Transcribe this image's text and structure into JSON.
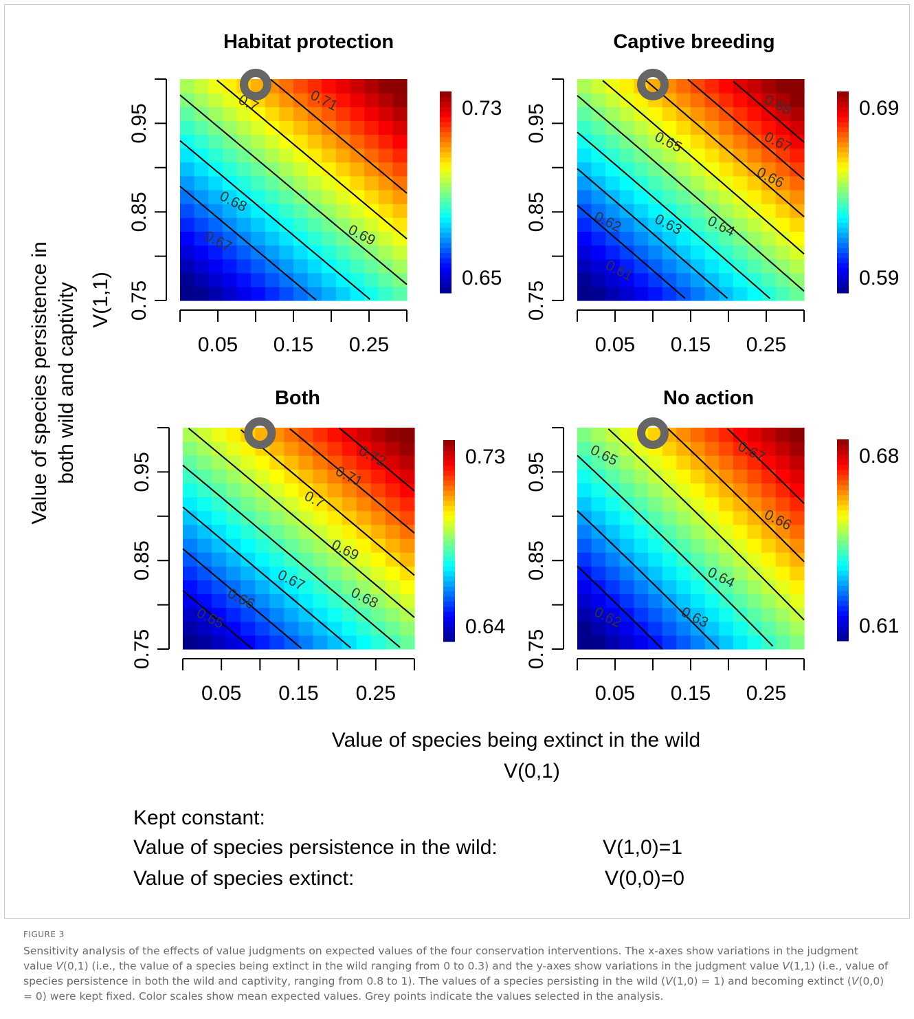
{
  "figure": {
    "y_axis_title_line1": "Value of species persistence in",
    "y_axis_title_line2": "both wild and captivity",
    "y_axis_title_line3": "V(1,1)",
    "x_axis_title_line1": "Value of species being extinct in the wild",
    "x_axis_title_line2": "V(0,1)",
    "kept_constant_heading": "Kept constant:",
    "constants": [
      {
        "label": "Value of species persistence in the wild:",
        "value": "V(1,0)=1"
      },
      {
        "label": "Value of species extinct:",
        "value": "V(0,0)=0"
      }
    ]
  },
  "caption": {
    "label": "FIGURE 3",
    "parts": [
      "Sensitivity analysis of the effects of value judgments on expected values of the four conservation interventions. The x-axes show variations in the judgment value ",
      "V",
      "(0,1) (i.e., the value of a species being extinct in the wild ranging from 0 to 0.3) and the y-axes show variations in the judgment value ",
      "V",
      "(1,1) (i.e., value of species persistence in both the wild and captivity, ranging from 0.8 to 1). The values of a species persisting in the wild (",
      "V",
      "(1,0) = 1) and becoming extinct (",
      "V",
      "(0,0) = 0) were kept fixed. Color scales show mean expected values. Grey points indicate the values selected in the analysis."
    ]
  },
  "colors": {
    "ramp": [
      "#00008b",
      "#0000ff",
      "#0080ff",
      "#00ffff",
      "#80ff80",
      "#ffff00",
      "#ff8000",
      "#ff0000",
      "#8b0000"
    ],
    "selected_point": "#666666",
    "contour": "#000000"
  },
  "chart_data": [
    {
      "type": "heatmap",
      "title": "Habitat protection",
      "x_ticks": [
        0.05,
        0.15,
        0.25
      ],
      "y_ticks": [
        0.75,
        0.85,
        0.95
      ],
      "y_minor_ticks": [
        0.8,
        0.9,
        1.0
      ],
      "x_minor_ticks": [
        0.0,
        0.1,
        0.2,
        0.3
      ],
      "xlim": [
        0,
        0.3
      ],
      "ylim": [
        0.75,
        1.0
      ],
      "grid_cells": [
        16,
        16
      ],
      "z_corners": {
        "x0y0": 0.645,
        "x1y0": 0.6865,
        "x0y1": 0.6935,
        "x1y1": 0.735
      },
      "colorbar": {
        "min": 0.65,
        "max": 0.73,
        "labels": [
          "0.73",
          "0.65"
        ]
      },
      "contour_levels": [
        0.67,
        0.68,
        0.69,
        0.7,
        0.71
      ],
      "contour_labels": [
        {
          "text": "0.7",
          "x": 0.09,
          "y": 0.972
        },
        {
          "text": "0.71",
          "x": 0.19,
          "y": 0.975
        },
        {
          "text": "0.68",
          "x": 0.07,
          "y": 0.861
        },
        {
          "text": "0.69",
          "x": 0.24,
          "y": 0.823
        },
        {
          "text": "0.67",
          "x": 0.05,
          "y": 0.816
        }
      ],
      "selected_point": {
        "x": 0.1,
        "y": 1.0
      }
    },
    {
      "type": "heatmap",
      "title": "Captive breeding",
      "x_ticks": [
        0.05,
        0.15,
        0.25
      ],
      "y_ticks": [
        0.75,
        0.85,
        0.95
      ],
      "y_minor_ticks": [
        0.8,
        0.9,
        1.0
      ],
      "x_minor_ticks": [
        0.0,
        0.1,
        0.2,
        0.3
      ],
      "xlim": [
        0,
        0.3
      ],
      "ylim": [
        0.75,
        1.0
      ],
      "grid_cells": [
        16,
        16
      ],
      "z_corners": {
        "x0y0": 0.584,
        "x1y0": 0.6375,
        "x0y1": 0.6445,
        "x1y1": 0.697
      },
      "colorbar": {
        "min": 0.59,
        "max": 0.69,
        "labels": [
          "0.69",
          "0.59"
        ]
      },
      "contour_levels": [
        0.61,
        0.62,
        0.63,
        0.64,
        0.65,
        0.66,
        0.67,
        0.68
      ],
      "contour_labels": [
        {
          "text": "0.68",
          "x": 0.265,
          "y": 0.97
        },
        {
          "text": "0.67",
          "x": 0.265,
          "y": 0.928
        },
        {
          "text": "0.65",
          "x": 0.12,
          "y": 0.928
        },
        {
          "text": "0.66",
          "x": 0.255,
          "y": 0.888
        },
        {
          "text": "0.64",
          "x": 0.19,
          "y": 0.833
        },
        {
          "text": "0.63",
          "x": 0.12,
          "y": 0.835
        },
        {
          "text": "0.62",
          "x": 0.04,
          "y": 0.838
        },
        {
          "text": "0.61",
          "x": 0.055,
          "y": 0.783
        }
      ],
      "selected_point": {
        "x": 0.1,
        "y": 1.0
      }
    },
    {
      "type": "heatmap",
      "title": "Both",
      "x_ticks": [
        0.05,
        0.15,
        0.25
      ],
      "y_ticks": [
        0.75,
        0.85,
        0.95
      ],
      "y_minor_ticks": [
        0.8,
        0.9,
        1.0
      ],
      "x_minor_ticks": [
        0.0,
        0.1,
        0.2,
        0.3
      ],
      "xlim": [
        0,
        0.3
      ],
      "ylim": [
        0.75,
        1.0
      ],
      "grid_cells": [
        16,
        16
      ],
      "z_corners": {
        "x0y0": 0.636,
        "x1y0": 0.6825,
        "x0y1": 0.689,
        "x1y1": 0.735
      },
      "colorbar": {
        "min": 0.64,
        "max": 0.73,
        "labels": [
          "0.73",
          "0.64"
        ]
      },
      "contour_levels": [
        0.65,
        0.66,
        0.67,
        0.68,
        0.69,
        0.7,
        0.71,
        0.72
      ],
      "contour_labels": [
        {
          "text": "0.72",
          "x": 0.245,
          "y": 0.967
        },
        {
          "text": "0.71",
          "x": 0.215,
          "y": 0.944
        },
        {
          "text": "0.7",
          "x": 0.17,
          "y": 0.918
        },
        {
          "text": "0.69",
          "x": 0.21,
          "y": 0.861
        },
        {
          "text": "0.68",
          "x": 0.235,
          "y": 0.807
        },
        {
          "text": "0.67",
          "x": 0.14,
          "y": 0.827
        },
        {
          "text": "0.66",
          "x": 0.075,
          "y": 0.806
        },
        {
          "text": "0.65",
          "x": 0.035,
          "y": 0.784
        }
      ],
      "selected_point": {
        "x": 0.1,
        "y": 1.0
      }
    },
    {
      "type": "heatmap",
      "title": "No action",
      "x_ticks": [
        0.05,
        0.15,
        0.25
      ],
      "y_ticks": [
        0.75,
        0.85,
        0.95
      ],
      "y_minor_ticks": [
        0.8,
        0.9,
        1.0
      ],
      "x_minor_ticks": [
        0.0,
        0.1,
        0.2,
        0.3
      ],
      "xlim": [
        0,
        0.3
      ],
      "ylim": [
        0.75,
        1.0
      ],
      "grid_cells": [
        16,
        16
      ],
      "z_corners": {
        "x0y0": 0.605,
        "x1y0": 0.645,
        "x0y1": 0.645,
        "x1y1": 0.683
      },
      "colorbar": {
        "min": 0.61,
        "max": 0.68,
        "labels": [
          "0.68",
          "0.61"
        ]
      },
      "contour_levels": [
        0.62,
        0.63,
        0.64,
        0.65,
        0.66,
        0.67
      ],
      "contour_labels": [
        {
          "text": "0.67",
          "x": 0.23,
          "y": 0.972
        },
        {
          "text": "0.65",
          "x": 0.035,
          "y": 0.968
        },
        {
          "text": "0.66",
          "x": 0.265,
          "y": 0.895
        },
        {
          "text": "0.64",
          "x": 0.19,
          "y": 0.83
        },
        {
          "text": "0.63",
          "x": 0.155,
          "y": 0.785
        },
        {
          "text": "0.62",
          "x": 0.04,
          "y": 0.785
        }
      ],
      "selected_point": {
        "x": 0.1,
        "y": 1.0
      }
    }
  ]
}
